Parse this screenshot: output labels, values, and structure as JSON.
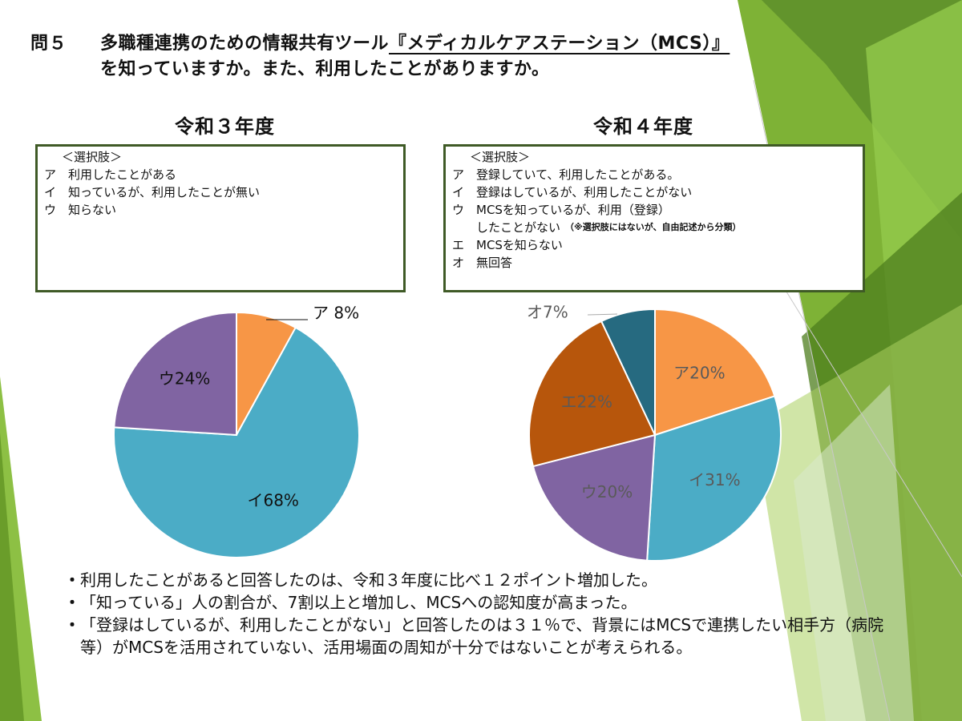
{
  "header": {
    "qno": "問５",
    "line1_pre": "多職種連携のための情報共有ツール",
    "line1_underlined": "『メディカルケアステーション（MCS）』",
    "line2": "を知っていますか。また、利用したことがありますか。"
  },
  "left": {
    "year_title": "令和３年度",
    "options_header": "＜選択肢＞",
    "options": [
      {
        "key": "ア",
        "text": "利用したことがある"
      },
      {
        "key": "イ",
        "text": "知っているが、利用したことが無い"
      },
      {
        "key": "ウ",
        "text": "知らない"
      }
    ]
  },
  "right": {
    "year_title": "令和４年度",
    "options_header": "＜選択肢＞",
    "options": [
      {
        "key": "ア",
        "text": "登録していて、利用したことがある。"
      },
      {
        "key": "イ",
        "text": "登録はしているが、利用したことがない"
      },
      {
        "key": "ウ",
        "text": "MCSを知っているが、利用（登録）"
      },
      {
        "key": "",
        "text": "したことがない",
        "note": "（※選択肢にはないが、自由記述から分類）"
      },
      {
        "key": "エ",
        "text": "MCSを知らない"
      },
      {
        "key": "オ",
        "text": "無回答"
      }
    ]
  },
  "chart_data": [
    {
      "type": "pie",
      "title": "令和３年度",
      "categories": [
        "ア",
        "イ",
        "ウ"
      ],
      "values": [
        8,
        68,
        24
      ],
      "labels": [
        "ア 8%",
        "イ68%",
        "ウ24%"
      ],
      "colors": [
        "#f79646",
        "#4bacc6",
        "#8064a2"
      ]
    },
    {
      "type": "pie",
      "title": "令和４年度",
      "categories": [
        "ア",
        "イ",
        "ウ",
        "エ",
        "オ"
      ],
      "values": [
        20,
        31,
        20,
        22,
        7
      ],
      "labels": [
        "ア20%",
        "イ31%",
        "ウ20%",
        "エ22%",
        "オ7%"
      ],
      "colors": [
        "#f79646",
        "#4bacc6",
        "#8064a2",
        "#b7560c",
        "#266a80"
      ]
    }
  ],
  "bullets": [
    "利用したことがあると回答したのは、令和３年度に比べ１２ポイント増加した。",
    "「知っている」人の割合が、7割以上と増加し、MCSへの認知度が高まった。",
    "「登録はしているが、利用したことがない」と回答したのは３１％で、背景にはMCSで連携したい相手方（病院等）がMCSを活用されていない、活用場面の周知が十分ではないことが考えられる。"
  ],
  "bullet_marker": "・",
  "theme": {
    "green_dark": "#3f5a26",
    "green": "#6aa22a",
    "green_light": "#a6cb58"
  }
}
